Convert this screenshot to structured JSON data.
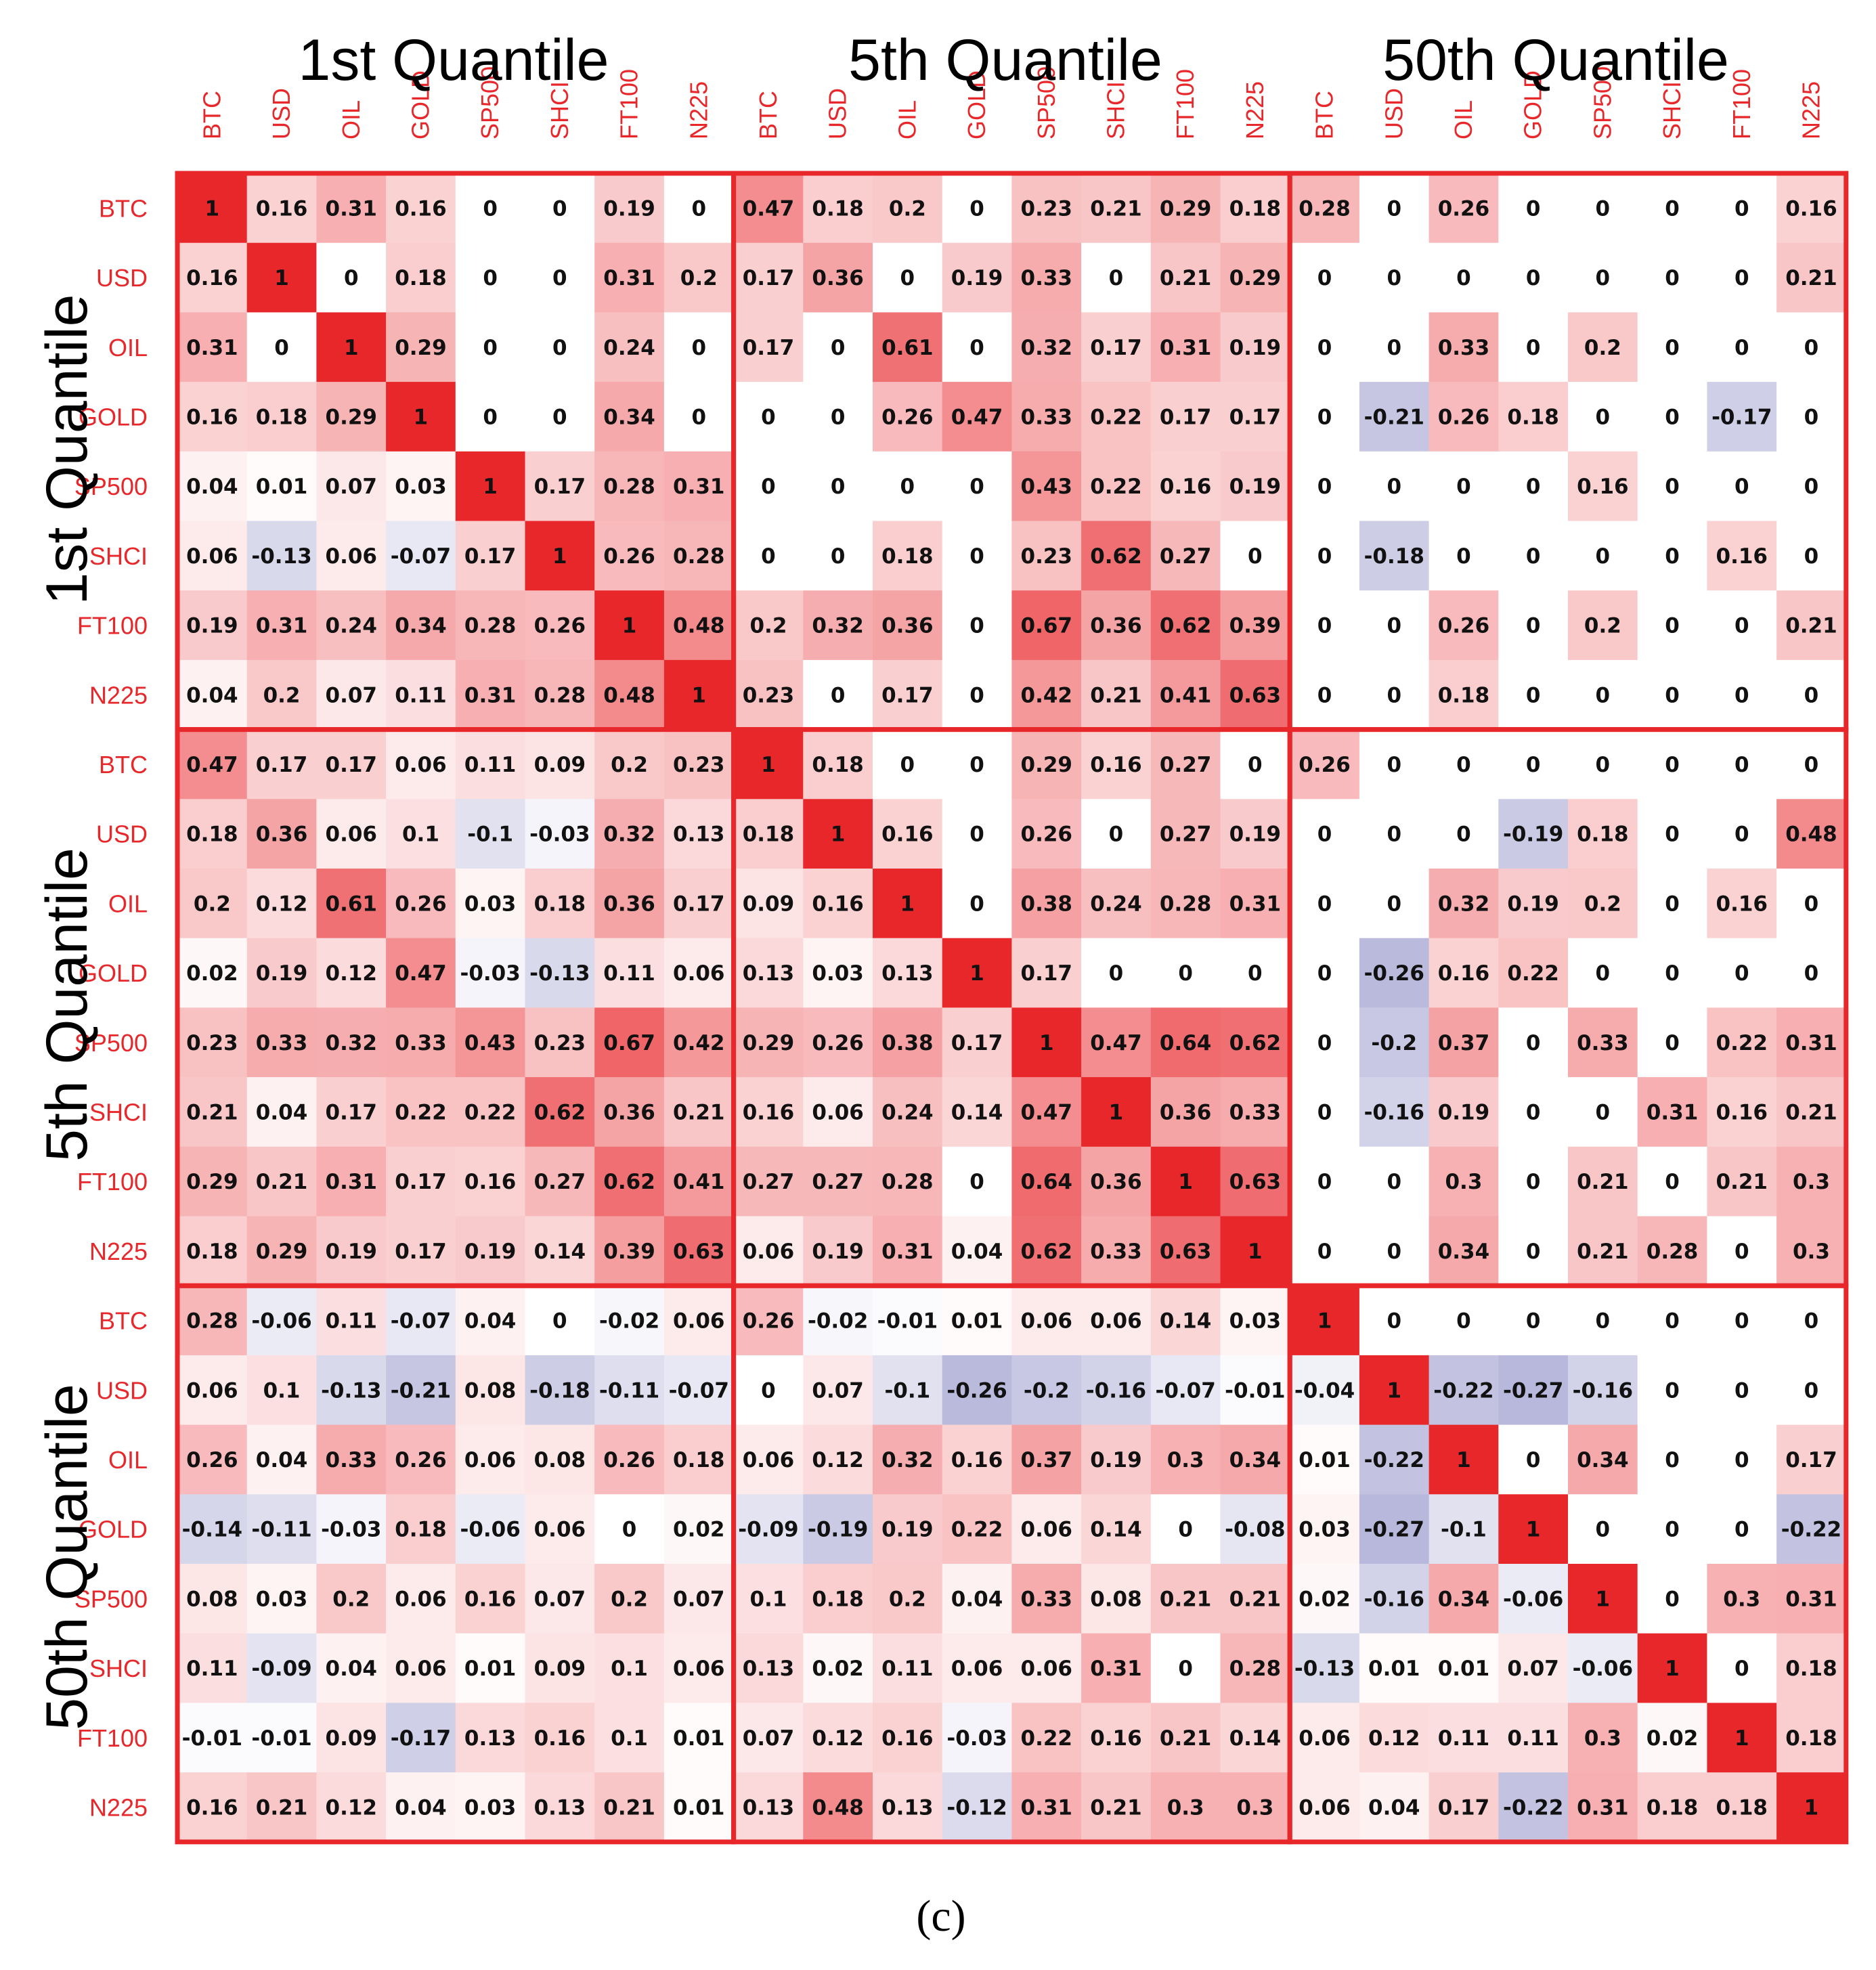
{
  "figure": {
    "caption": "(c)"
  },
  "chart_data": {
    "type": "heatmap",
    "title": "",
    "block_labels": [
      "1st Quantile",
      "5th Quantile",
      "50th Quantile"
    ],
    "assets": [
      "BTC",
      "USD",
      "OIL",
      "GOLD",
      "SP500",
      "SHCI",
      "FT100",
      "N225"
    ],
    "color_scale": {
      "negative": "#8080c0",
      "zero": "#ffffff",
      "positive": "#e8272b",
      "range": [
        -1,
        1
      ]
    },
    "values": [
      [
        1,
        0.16,
        0.31,
        0.16,
        0,
        0,
        0.19,
        0,
        0.47,
        0.18,
        0.2,
        0,
        0.23,
        0.21,
        0.29,
        0.18,
        0.28,
        0,
        0.26,
        0,
        0,
        0,
        0,
        0.16
      ],
      [
        0.16,
        1,
        0,
        0.18,
        0,
        0,
        0.31,
        0.2,
        0.17,
        0.36,
        0,
        0.19,
        0.33,
        0,
        0.21,
        0.29,
        0,
        0,
        0,
        0,
        0,
        0,
        0,
        0.21
      ],
      [
        0.31,
        0,
        1,
        0.29,
        0,
        0,
        0.24,
        0,
        0.17,
        0,
        0.61,
        0,
        0.32,
        0.17,
        0.31,
        0.19,
        0,
        0,
        0.33,
        0,
        0.2,
        0,
        0,
        0
      ],
      [
        0.16,
        0.18,
        0.29,
        1,
        0,
        0,
        0.34,
        0,
        0,
        0,
        0.26,
        0.47,
        0.33,
        0.22,
        0.17,
        0.17,
        0,
        -0.21,
        0.26,
        0.18,
        0,
        0,
        -0.17,
        0
      ],
      [
        0.04,
        0.01,
        0.07,
        0.03,
        1,
        0.17,
        0.28,
        0.31,
        0,
        0,
        0,
        0,
        0.43,
        0.22,
        0.16,
        0.19,
        0,
        0,
        0,
        0,
        0.16,
        0,
        0,
        0
      ],
      [
        0.06,
        -0.13,
        0.06,
        -0.07,
        0.17,
        1,
        0.26,
        0.28,
        0,
        0,
        0.18,
        0,
        0.23,
        0.62,
        0.27,
        0,
        0,
        -0.18,
        0,
        0,
        0,
        0,
        0.16,
        0
      ],
      [
        0.19,
        0.31,
        0.24,
        0.34,
        0.28,
        0.26,
        1,
        0.48,
        0.2,
        0.32,
        0.36,
        0,
        0.67,
        0.36,
        0.62,
        0.39,
        0,
        0,
        0.26,
        0,
        0.2,
        0,
        0,
        0.21
      ],
      [
        0.04,
        0.2,
        0.07,
        0.11,
        0.31,
        0.28,
        0.48,
        1,
        0.23,
        0,
        0.17,
        0,
        0.42,
        0.21,
        0.41,
        0.63,
        0,
        0,
        0.18,
        0,
        0,
        0,
        0,
        0
      ],
      [
        0.47,
        0.17,
        0.17,
        0.06,
        0.11,
        0.09,
        0.2,
        0.23,
        1,
        0.18,
        0,
        0,
        0.29,
        0.16,
        0.27,
        0,
        0.26,
        0,
        0,
        0,
        0,
        0,
        0,
        0
      ],
      [
        0.18,
        0.36,
        0.06,
        0.1,
        -0.1,
        -0.03,
        0.32,
        0.13,
        0.18,
        1,
        0.16,
        0,
        0.26,
        0,
        0.27,
        0.19,
        0,
        0,
        0,
        -0.19,
        0.18,
        0,
        0,
        0.48
      ],
      [
        0.2,
        0.12,
        0.61,
        0.26,
        0.03,
        0.18,
        0.36,
        0.17,
        0.09,
        0.16,
        1,
        0,
        0.38,
        0.24,
        0.28,
        0.31,
        0,
        0,
        0.32,
        0.19,
        0.2,
        0,
        0.16,
        0
      ],
      [
        0.02,
        0.19,
        0.12,
        0.47,
        -0.03,
        -0.13,
        0.11,
        0.06,
        0.13,
        0.03,
        0.13,
        1,
        0.17,
        0,
        0,
        0,
        0,
        -0.26,
        0.16,
        0.22,
        0,
        0,
        0,
        0
      ],
      [
        0.23,
        0.33,
        0.32,
        0.33,
        0.43,
        0.23,
        0.67,
        0.42,
        0.29,
        0.26,
        0.38,
        0.17,
        1,
        0.47,
        0.64,
        0.62,
        0,
        -0.2,
        0.37,
        0,
        0.33,
        0,
        0.22,
        0.31
      ],
      [
        0.21,
        0.04,
        0.17,
        0.22,
        0.22,
        0.62,
        0.36,
        0.21,
        0.16,
        0.06,
        0.24,
        0.14,
        0.47,
        1,
        0.36,
        0.33,
        0,
        -0.16,
        0.19,
        0,
        0,
        0.31,
        0.16,
        0.21
      ],
      [
        0.29,
        0.21,
        0.31,
        0.17,
        0.16,
        0.27,
        0.62,
        0.41,
        0.27,
        0.27,
        0.28,
        0,
        0.64,
        0.36,
        1,
        0.63,
        0,
        0,
        0.3,
        0,
        0.21,
        0,
        0.21,
        0.3
      ],
      [
        0.18,
        0.29,
        0.19,
        0.17,
        0.19,
        0.14,
        0.39,
        0.63,
        0.06,
        0.19,
        0.31,
        0.04,
        0.62,
        0.33,
        0.63,
        1,
        0,
        0,
        0.34,
        0,
        0.21,
        0.28,
        0,
        0.3
      ],
      [
        0.28,
        -0.06,
        0.11,
        -0.07,
        0.04,
        0,
        -0.02,
        0.06,
        0.26,
        -0.02,
        -0.01,
        0.01,
        0.06,
        0.06,
        0.14,
        0.03,
        1,
        0,
        0,
        0,
        0,
        0,
        0,
        0
      ],
      [
        0.06,
        0.1,
        -0.13,
        -0.21,
        0.08,
        -0.18,
        -0.11,
        -0.07,
        0,
        0.07,
        -0.1,
        -0.26,
        -0.2,
        -0.16,
        -0.07,
        -0.01,
        -0.04,
        1,
        -0.22,
        -0.27,
        -0.16,
        0,
        0,
        0
      ],
      [
        0.26,
        0.04,
        0.33,
        0.26,
        0.06,
        0.08,
        0.26,
        0.18,
        0.06,
        0.12,
        0.32,
        0.16,
        0.37,
        0.19,
        0.3,
        0.34,
        0.01,
        -0.22,
        1,
        0,
        0.34,
        0,
        0,
        0.17
      ],
      [
        -0.14,
        -0.11,
        -0.03,
        0.18,
        -0.06,
        0.06,
        0,
        0.02,
        -0.09,
        -0.19,
        0.19,
        0.22,
        0.06,
        0.14,
        0,
        -0.08,
        0.03,
        -0.27,
        -0.1,
        1,
        0,
        0,
        0,
        -0.22
      ],
      [
        0.08,
        0.03,
        0.2,
        0.06,
        0.16,
        0.07,
        0.2,
        0.07,
        0.1,
        0.18,
        0.2,
        0.04,
        0.33,
        0.08,
        0.21,
        0.21,
        0.02,
        -0.16,
        0.34,
        -0.06,
        1,
        0,
        0.3,
        0.31
      ],
      [
        0.11,
        -0.09,
        0.04,
        0.06,
        0.01,
        0.09,
        0.1,
        0.06,
        0.13,
        0.02,
        0.11,
        0.06,
        0.06,
        0.31,
        0,
        0.28,
        -0.13,
        0.01,
        0.01,
        0.07,
        -0.06,
        1,
        0,
        0.18
      ],
      [
        -0.01,
        -0.01,
        0.09,
        -0.17,
        0.13,
        0.16,
        0.1,
        0.01,
        0.07,
        0.12,
        0.16,
        -0.03,
        0.22,
        0.16,
        0.21,
        0.14,
        0.06,
        0.12,
        0.11,
        0.11,
        0.3,
        0.02,
        1,
        0.18
      ],
      [
        0.16,
        0.21,
        0.12,
        0.04,
        0.03,
        0.13,
        0.21,
        0.01,
        0.13,
        0.48,
        0.13,
        -0.12,
        0.31,
        0.21,
        0.3,
        0.3,
        0.06,
        0.04,
        0.17,
        -0.22,
        0.31,
        0.18,
        0.18,
        1
      ]
    ]
  }
}
